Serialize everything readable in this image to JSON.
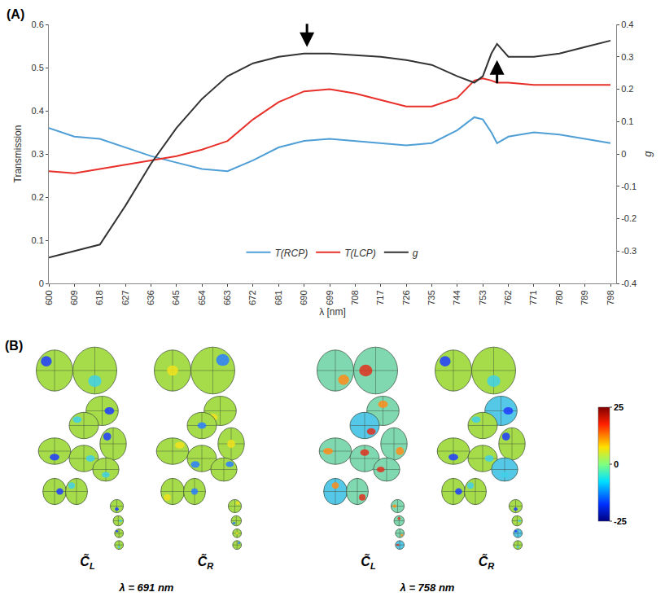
{
  "chart_data": {
    "type": "line",
    "panel_label": "(A)",
    "x_label": "λ [nm]",
    "y_label": "Transmission",
    "y2_label": "g",
    "x": [
      600,
      609,
      618,
      627,
      636,
      645,
      654,
      663,
      672,
      681,
      690,
      699,
      708,
      717,
      726,
      735,
      744,
      750,
      753,
      756,
      758,
      762,
      771,
      780,
      789,
      798
    ],
    "series": [
      {
        "name": "T(RCP)",
        "color": "#4f9fd6",
        "axis": "y",
        "values": [
          0.36,
          0.34,
          0.335,
          0.315,
          0.295,
          0.28,
          0.265,
          0.26,
          0.285,
          0.315,
          0.33,
          0.335,
          0.33,
          0.325,
          0.32,
          0.325,
          0.355,
          0.385,
          0.38,
          0.35,
          0.325,
          0.34,
          0.35,
          0.345,
          0.335,
          0.325
        ]
      },
      {
        "name": "T(LCP)",
        "color": "#e8302a",
        "axis": "y",
        "values": [
          0.26,
          0.255,
          0.265,
          0.275,
          0.285,
          0.295,
          0.31,
          0.33,
          0.38,
          0.42,
          0.445,
          0.45,
          0.44,
          0.425,
          0.41,
          0.41,
          0.43,
          0.47,
          0.475,
          0.47,
          0.465,
          0.465,
          0.46,
          0.46,
          0.46,
          0.46
        ]
      },
      {
        "name": "g",
        "color": "#333333",
        "axis": "y2",
        "values": [
          -0.32,
          -0.3,
          -0.28,
          -0.16,
          -0.03,
          0.08,
          0.17,
          0.24,
          0.28,
          0.3,
          0.31,
          0.31,
          0.305,
          0.3,
          0.29,
          0.275,
          0.24,
          0.22,
          0.24,
          0.31,
          0.34,
          0.3,
          0.3,
          0.31,
          0.33,
          0.35
        ]
      }
    ],
    "xlim": [
      600,
      800
    ],
    "xticks": [
      600,
      609,
      618,
      627,
      636,
      645,
      654,
      663,
      672,
      681,
      690,
      699,
      708,
      717,
      726,
      735,
      744,
      753,
      762,
      771,
      780,
      789,
      798
    ],
    "ylim": [
      0,
      0.6
    ],
    "yticks": [
      0,
      0.1,
      0.2,
      0.3,
      0.4,
      0.5,
      0.6
    ],
    "y2lim": [
      -0.4,
      0.4
    ],
    "y2ticks": [
      -0.4,
      -0.3,
      -0.2,
      -0.1,
      0,
      0.1,
      0.2,
      0.3,
      0.4
    ],
    "arrows": [
      {
        "x": 691,
        "y": 0.33,
        "direction": "down"
      },
      {
        "x": 758,
        "y": 0.29,
        "direction": "up"
      }
    ],
    "legend": "bottom",
    "grid": false
  },
  "panel_b": {
    "label": "(B)",
    "groups": [
      {
        "wavelength_label": "λ = 691 nm",
        "maps": [
          {
            "symbol": "C̃",
            "subscript": "L"
          },
          {
            "symbol": "C̃",
            "subscript": "R"
          }
        ]
      },
      {
        "wavelength_label": "λ = 758 nm",
        "maps": [
          {
            "symbol": "C̃",
            "subscript": "L"
          },
          {
            "symbol": "C̃",
            "subscript": "R"
          }
        ]
      }
    ],
    "colorbar": {
      "range": [
        -25,
        25
      ],
      "ticks": [
        25,
        0,
        -25
      ]
    }
  }
}
